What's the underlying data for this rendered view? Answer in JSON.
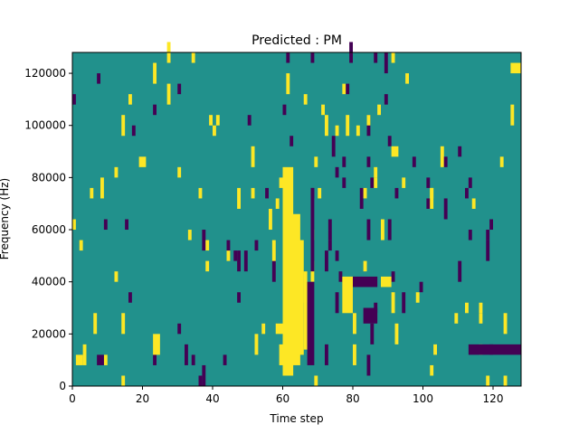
{
  "colors": {
    "background": "#21918c",
    "low": "#440154",
    "high": "#fde725",
    "axis": "#000000"
  },
  "chart_data": {
    "type": "heatmap",
    "title": "Predicted : PM",
    "xlabel": "Time step",
    "ylabel": "Frequency (Hz)",
    "xlim": [
      0,
      128
    ],
    "ylim": [
      0,
      128000
    ],
    "xticks": [
      0,
      20,
      40,
      60,
      80,
      100,
      120
    ],
    "yticks": [
      0,
      20000,
      40000,
      60000,
      80000,
      100000,
      120000
    ],
    "grid": false,
    "colormap": "viridis",
    "default_state": "neutral",
    "regions": [
      {
        "state": "high",
        "x": [
          60,
          63
        ],
        "y": [
          4000,
          84000
        ]
      },
      {
        "state": "high",
        "x": [
          62,
          65
        ],
        "y": [
          8000,
          66000
        ]
      },
      {
        "state": "high",
        "x": [
          64,
          66
        ],
        "y": [
          12000,
          56000
        ]
      },
      {
        "state": "high",
        "x": [
          66,
          67
        ],
        "y": [
          14000,
          44000
        ]
      },
      {
        "state": "low",
        "x": [
          67,
          69
        ],
        "y": [
          8000,
          40000
        ]
      },
      {
        "state": "low",
        "x": [
          68,
          69
        ],
        "y": [
          44000,
          76000
        ]
      },
      {
        "state": "high",
        "x": [
          77,
          80
        ],
        "y": [
          28000,
          42000
        ]
      },
      {
        "state": "low",
        "x": [
          83,
          87
        ],
        "y": [
          24000,
          30000
        ]
      },
      {
        "state": "high",
        "x": [
          88,
          91
        ],
        "y": [
          38000,
          42000
        ]
      },
      {
        "state": "low",
        "x": [
          80,
          87
        ],
        "y": [
          38000,
          42000
        ]
      },
      {
        "state": "low",
        "x": [
          113,
          128
        ],
        "y": [
          12000,
          16000
        ]
      },
      {
        "state": "high",
        "x": [
          125,
          128
        ],
        "y": [
          120000,
          124000
        ]
      },
      {
        "state": "high",
        "x": [
          1,
          3
        ],
        "y": [
          8000,
          12000
        ]
      },
      {
        "state": "low",
        "x": [
          7,
          9
        ],
        "y": [
          8000,
          12000
        ]
      },
      {
        "state": "high",
        "x": [
          23,
          25
        ],
        "y": [
          12000,
          20000
        ]
      },
      {
        "state": "high",
        "x": [
          58,
          60
        ],
        "y": [
          20000,
          24000
        ]
      }
    ],
    "rand_seed": 7,
    "scatter_density": 0.032
  }
}
